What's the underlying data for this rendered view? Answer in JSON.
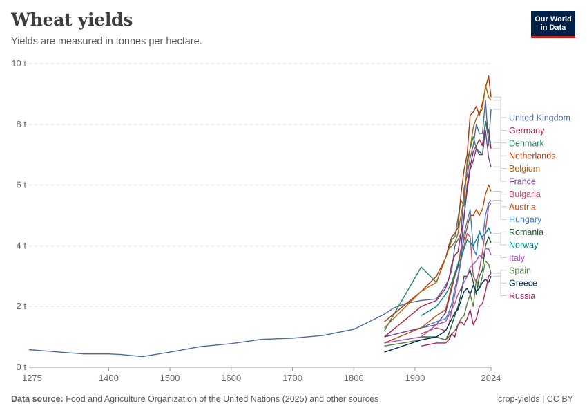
{
  "header": {
    "title": "Wheat yields",
    "subtitle": "Yields are measured in tonnes per hectare."
  },
  "logo": {
    "line1": "Our World",
    "line2": "in Data"
  },
  "footer": {
    "source_label": "Data source:",
    "source_text": "Food and Agriculture Organization of the United Nations (2025) and other sources",
    "right": "crop-yields | CC BY"
  },
  "chart_data": {
    "type": "line",
    "title": "Wheat yields",
    "subtitle": "Yields are measured in tonnes per hectare.",
    "ylabel": "",
    "xlabel": "",
    "ylim": [
      0,
      10
    ],
    "xlim": [
      1270,
      2024
    ],
    "unit": "t",
    "y_ticks": [
      0,
      2,
      4,
      6,
      8,
      10
    ],
    "y_tick_labels": [
      "0 t",
      "2 t",
      "4 t",
      "6 t",
      "8 t",
      "10 t"
    ],
    "x_ticks": [
      1275,
      1400,
      1500,
      1600,
      1700,
      1800,
      1900,
      2024
    ],
    "x_tick_labels": [
      "1275",
      "1400",
      "1500",
      "1600",
      "1700",
      "1800",
      "1900",
      "2024"
    ],
    "grid": "horizontal dashed",
    "legend": "right end labels",
    "series": [
      {
        "name": "United Kingdom",
        "color": "#4c6a9c",
        "x": [
          1270,
          1290,
          1320,
          1360,
          1400,
          1420,
          1455,
          1500,
          1550,
          1600,
          1650,
          1700,
          1750,
          1800,
          1850,
          1865,
          1885,
          1910,
          1935,
          1950,
          1955,
          1960,
          1965,
          1970,
          1975,
          1980,
          1985,
          1990,
          1995,
          2000,
          2005,
          2010,
          2015,
          2020,
          2024
        ],
        "y": [
          0.58,
          0.55,
          0.5,
          0.44,
          0.44,
          0.42,
          0.35,
          0.5,
          0.68,
          0.78,
          0.92,
          0.96,
          1.05,
          1.25,
          1.75,
          1.95,
          2.1,
          2.2,
          2.25,
          2.7,
          2.9,
          3.2,
          4.0,
          4.2,
          4.4,
          5.9,
          6.3,
          6.9,
          7.3,
          8.0,
          7.7,
          7.7,
          8.8,
          7.3,
          8.5
        ]
      },
      {
        "name": "Germany",
        "color": "#a2254c",
        "x": [
          1850,
          1910,
          1935,
          1950,
          1955,
          1960,
          1965,
          1970,
          1975,
          1980,
          1985,
          1990,
          1995,
          2000,
          2005,
          2010,
          2015,
          2020,
          2024
        ],
        "y": [
          1.0,
          2.0,
          2.2,
          2.6,
          2.9,
          3.4,
          3.7,
          3.8,
          4.4,
          4.9,
          6.0,
          6.6,
          7.1,
          7.3,
          7.5,
          7.3,
          8.1,
          7.8,
          7.2
        ]
      },
      {
        "name": "Denmark",
        "color": "#2b8465",
        "x": [
          1850,
          1910,
          1935,
          1950,
          1955,
          1960,
          1965,
          1970,
          1975,
          1980,
          1985,
          1990,
          1995,
          2000,
          2005,
          2010,
          2015,
          2020,
          2024
        ],
        "y": [
          1.2,
          3.3,
          2.8,
          3.6,
          3.9,
          4.2,
          4.3,
          4.9,
          5.5,
          5.3,
          6.8,
          7.2,
          7.6,
          7.2,
          7.1,
          7.0,
          8.1,
          7.5,
          7.4
        ]
      },
      {
        "name": "Netherlands",
        "color": "#b13507",
        "x": [
          1850,
          1910,
          1935,
          1950,
          1955,
          1960,
          1965,
          1970,
          1975,
          1980,
          1985,
          1990,
          1995,
          2000,
          2005,
          2010,
          2015,
          2020,
          2024
        ],
        "y": [
          1.5,
          2.5,
          3.0,
          3.6,
          4.0,
          4.3,
          4.4,
          4.6,
          5.7,
          6.5,
          7.0,
          8.3,
          8.4,
          8.6,
          8.3,
          8.7,
          9.2,
          9.6,
          8.9
        ]
      },
      {
        "name": "Belgium",
        "color": "#b16214",
        "x": [
          1850,
          1910,
          1935,
          1950,
          1955,
          1960,
          1965,
          1970,
          1975,
          1980,
          1985,
          1990,
          1995,
          2000,
          2005,
          2010,
          2015,
          2020,
          2024
        ],
        "y": [
          1.3,
          2.5,
          2.8,
          3.6,
          3.9,
          4.0,
          4.1,
          4.4,
          5.0,
          5.6,
          6.6,
          7.2,
          7.9,
          8.2,
          8.4,
          8.5,
          9.3,
          8.9,
          8.8
        ]
      },
      {
        "name": "France",
        "color": "#6d3e91",
        "x": [
          1850,
          1910,
          1935,
          1950,
          1955,
          1960,
          1965,
          1970,
          1975,
          1980,
          1985,
          1990,
          1995,
          2000,
          2005,
          2010,
          2015,
          2020,
          2024
        ],
        "y": [
          1.0,
          1.3,
          1.4,
          1.8,
          2.2,
          2.6,
          3.0,
          3.3,
          3.9,
          5.0,
          5.8,
          6.5,
          6.8,
          7.2,
          7.0,
          7.0,
          7.8,
          6.9,
          6.6
        ]
      },
      {
        "name": "Bulgaria",
        "color": "#c15065",
        "x": [
          1910,
          1935,
          1950,
          1955,
          1960,
          1965,
          1970,
          1975,
          1980,
          1985,
          1990,
          1995,
          2000,
          2005,
          2010,
          2015,
          2020,
          2024
        ],
        "y": [
          1.1,
          1.3,
          1.2,
          1.4,
          1.9,
          2.4,
          2.9,
          3.5,
          4.0,
          4.4,
          4.3,
          3.0,
          2.8,
          3.2,
          3.8,
          4.5,
          5.3,
          5.4
        ]
      },
      {
        "name": "Austria",
        "color": "#bc4a09",
        "x": [
          1850,
          1910,
          1935,
          1950,
          1955,
          1960,
          1965,
          1970,
          1975,
          1980,
          1985,
          1990,
          1995,
          2000,
          2005,
          2010,
          2015,
          2020,
          2024
        ],
        "y": [
          0.8,
          1.3,
          1.7,
          1.9,
          2.3,
          2.7,
          3.0,
          3.4,
          3.8,
          4.2,
          4.6,
          5.0,
          5.0,
          5.2,
          5.0,
          5.2,
          5.7,
          6.0,
          5.8
        ]
      },
      {
        "name": "Hungary",
        "color": "#3a7bc8",
        "x": [
          1910,
          1935,
          1950,
          1955,
          1960,
          1965,
          1970,
          1975,
          1980,
          1985,
          1990,
          1995,
          2000,
          2005,
          2010,
          2015,
          2020,
          2024
        ],
        "y": [
          1.3,
          1.5,
          1.6,
          1.8,
          2.1,
          2.6,
          3.0,
          3.6,
          4.4,
          4.8,
          5.2,
          3.9,
          3.7,
          4.5,
          4.2,
          5.0,
          5.4,
          5.5
        ]
      },
      {
        "name": "Romania",
        "color": "#1a5d2f",
        "x": [
          1910,
          1935,
          1950,
          1955,
          1960,
          1965,
          1970,
          1975,
          1980,
          1985,
          1990,
          1995,
          2000,
          2005,
          2010,
          2015,
          2020,
          2024
        ],
        "y": [
          1.0,
          1.0,
          0.9,
          1.1,
          1.4,
          1.7,
          2.0,
          2.4,
          3.0,
          3.0,
          3.2,
          2.8,
          2.4,
          3.0,
          3.2,
          4.0,
          4.3,
          4.1
        ]
      },
      {
        "name": "Norway",
        "color": "#00847e",
        "x": [
          1910,
          1935,
          1950,
          1955,
          1960,
          1965,
          1970,
          1975,
          1980,
          1985,
          1990,
          1995,
          2000,
          2005,
          2010,
          2015,
          2020,
          2024
        ],
        "y": [
          1.7,
          2.0,
          2.4,
          2.6,
          2.8,
          3.1,
          3.4,
          3.6,
          3.9,
          4.2,
          4.1,
          4.0,
          4.2,
          4.4,
          4.3,
          4.4,
          4.6,
          4.4
        ]
      },
      {
        "name": "Italy",
        "color": "#a652ba",
        "x": [
          1850,
          1910,
          1935,
          1950,
          1955,
          1960,
          1965,
          1970,
          1975,
          1980,
          1985,
          1990,
          1995,
          2000,
          2005,
          2010,
          2015,
          2020,
          2024
        ],
        "y": [
          0.8,
          1.0,
          1.4,
          1.5,
          1.7,
          1.9,
          2.1,
          2.4,
          2.6,
          2.8,
          3.0,
          3.3,
          3.4,
          3.5,
          3.7,
          3.6,
          3.9,
          3.9,
          3.7
        ]
      },
      {
        "name": "Spain",
        "color": "#578145",
        "x": [
          1850,
          1910,
          1935,
          1950,
          1955,
          1960,
          1965,
          1970,
          1975,
          1980,
          1985,
          1990,
          1995,
          2000,
          2005,
          2010,
          2015,
          2020,
          2024
        ],
        "y": [
          0.7,
          0.9,
          1.0,
          0.9,
          1.0,
          1.1,
          1.2,
          1.4,
          1.6,
          1.7,
          2.1,
          2.4,
          2.0,
          2.9,
          2.6,
          3.0,
          3.5,
          3.4,
          3.1
        ]
      },
      {
        "name": "Greece",
        "color": "#00295b",
        "x": [
          1850,
          1910,
          1935,
          1950,
          1955,
          1960,
          1965,
          1970,
          1975,
          1980,
          1985,
          1990,
          1995,
          2000,
          2005,
          2010,
          2015,
          2020,
          2024
        ],
        "y": [
          0.5,
          0.9,
          1.0,
          1.2,
          1.4,
          1.6,
          1.8,
          1.9,
          2.2,
          2.5,
          2.6,
          2.4,
          2.7,
          2.5,
          2.6,
          2.8,
          2.9,
          2.8,
          3.0
        ]
      },
      {
        "name": "Russia",
        "color": "#b11f5d",
        "x": [
          1910,
          1935,
          1950,
          1955,
          1960,
          1965,
          1970,
          1975,
          1980,
          1985,
          1990,
          1995,
          2000,
          2005,
          2010,
          2015,
          2020,
          2024
        ],
        "y": [
          0.7,
          0.8,
          0.8,
          0.9,
          1.1,
          1.0,
          1.4,
          1.5,
          1.4,
          1.6,
          1.9,
          1.4,
          1.6,
          2.0,
          2.1,
          2.5,
          3.0,
          3.1
        ]
      }
    ]
  }
}
